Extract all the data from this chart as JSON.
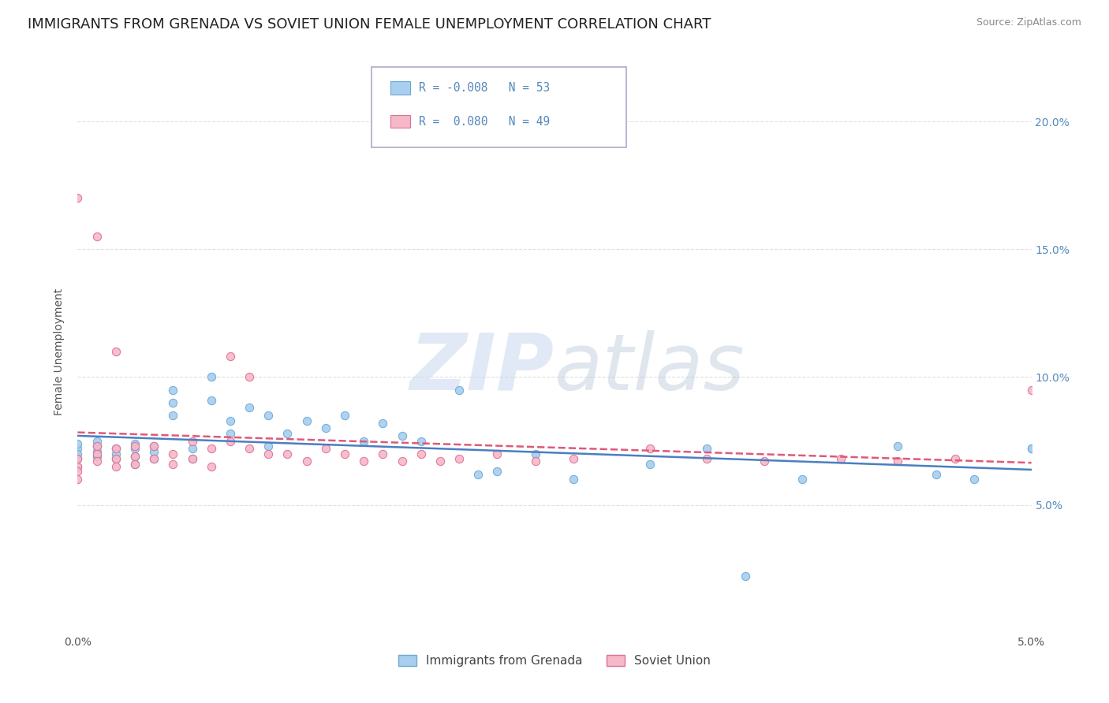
{
  "title": "IMMIGRANTS FROM GRENADA VS SOVIET UNION FEMALE UNEMPLOYMENT CORRELATION CHART",
  "source": "Source: ZipAtlas.com",
  "ylabel": "Female Unemployment",
  "series": [
    {
      "name": "Immigrants from Grenada",
      "color": "#a8cef0",
      "edge_color": "#6aaad4",
      "R": -0.008,
      "N": 53,
      "trend_color": "#4a7fc1",
      "trend_style": "solid",
      "x": [
        0.0,
        0.0,
        0.0,
        0.0,
        0.0,
        0.001,
        0.001,
        0.001,
        0.001,
        0.002,
        0.002,
        0.002,
        0.003,
        0.003,
        0.003,
        0.003,
        0.004,
        0.004,
        0.004,
        0.005,
        0.005,
        0.005,
        0.006,
        0.006,
        0.007,
        0.007,
        0.008,
        0.008,
        0.009,
        0.01,
        0.01,
        0.011,
        0.012,
        0.013,
        0.014,
        0.015,
        0.016,
        0.017,
        0.018,
        0.02,
        0.021,
        0.022,
        0.024,
        0.026,
        0.03,
        0.033,
        0.035,
        0.038,
        0.043,
        0.045,
        0.047,
        0.05,
        0.05
      ],
      "y": [
        0.072,
        0.074,
        0.07,
        0.068,
        0.065,
        0.073,
        0.071,
        0.069,
        0.075,
        0.072,
        0.07,
        0.068,
        0.074,
        0.072,
        0.069,
        0.066,
        0.073,
        0.071,
        0.068,
        0.09,
        0.085,
        0.095,
        0.072,
        0.068,
        0.1,
        0.091,
        0.083,
        0.078,
        0.088,
        0.073,
        0.085,
        0.078,
        0.083,
        0.08,
        0.085,
        0.075,
        0.082,
        0.077,
        0.075,
        0.095,
        0.062,
        0.063,
        0.07,
        0.06,
        0.066,
        0.072,
        0.022,
        0.06,
        0.073,
        0.062,
        0.06,
        0.072,
        0.072
      ]
    },
    {
      "name": "Soviet Union",
      "color": "#f5b8c8",
      "edge_color": "#e07090",
      "R": 0.08,
      "N": 49,
      "trend_color": "#e05878",
      "trend_style": "dashed",
      "x": [
        0.0,
        0.0,
        0.0,
        0.0,
        0.001,
        0.001,
        0.001,
        0.002,
        0.002,
        0.002,
        0.003,
        0.003,
        0.003,
        0.004,
        0.004,
        0.005,
        0.005,
        0.006,
        0.006,
        0.007,
        0.007,
        0.008,
        0.008,
        0.009,
        0.009,
        0.01,
        0.011,
        0.012,
        0.013,
        0.014,
        0.015,
        0.016,
        0.017,
        0.018,
        0.019,
        0.02,
        0.022,
        0.024,
        0.026,
        0.03,
        0.033,
        0.036,
        0.04,
        0.043,
        0.046,
        0.05,
        0.0,
        0.001,
        0.002
      ],
      "y": [
        0.065,
        0.068,
        0.063,
        0.06,
        0.073,
        0.07,
        0.067,
        0.072,
        0.068,
        0.065,
        0.073,
        0.069,
        0.066,
        0.073,
        0.068,
        0.07,
        0.066,
        0.075,
        0.068,
        0.072,
        0.065,
        0.075,
        0.108,
        0.1,
        0.072,
        0.07,
        0.07,
        0.067,
        0.072,
        0.07,
        0.067,
        0.07,
        0.067,
        0.07,
        0.067,
        0.068,
        0.07,
        0.067,
        0.068,
        0.072,
        0.068,
        0.067,
        0.068,
        0.067,
        0.068,
        0.095,
        0.17,
        0.155,
        0.11
      ]
    }
  ],
  "xlim": [
    0.0,
    0.05
  ],
  "ylim": [
    0.0,
    0.22
  ],
  "yticks": [
    0.05,
    0.1,
    0.15,
    0.2
  ],
  "ytick_labels": [
    "5.0%",
    "10.0%",
    "15.0%",
    "20.0%"
  ],
  "xticks": [
    0.0,
    0.05
  ],
  "xtick_labels": [
    "0.0%",
    "5.0%"
  ],
  "watermark_zip": "ZIP",
  "watermark_atlas": "atlas",
  "background_color": "#ffffff",
  "grid_color": "#dddddd",
  "title_fontsize": 13,
  "axis_label_fontsize": 10,
  "tick_color": "#5588bb"
}
